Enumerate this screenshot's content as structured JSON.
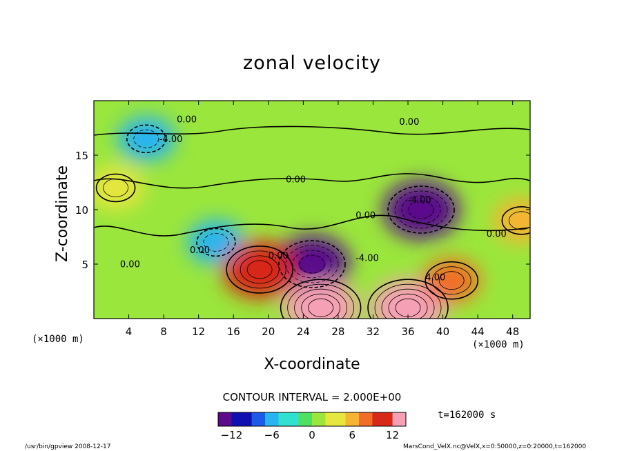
{
  "chart_data": {
    "type": "heatmap",
    "title": "zonal velocity",
    "xlabel": "X-coordinate",
    "ylabel": "Z-coordinate",
    "x_unit": "(×1000 m)",
    "x_unit_right": "(×1000 m)",
    "xlim": [
      0,
      50
    ],
    "ylim": [
      0,
      20
    ],
    "x_ticks": [
      "4",
      "8",
      "12",
      "16",
      "20",
      "24",
      "28",
      "32",
      "36",
      "40",
      "44",
      "48"
    ],
    "y_ticks": [
      "5",
      "10",
      "15"
    ],
    "contour_labels": [
      "0.00",
      "0.00",
      "-4.00",
      "0.00",
      "-4.00",
      "0.00",
      "0.00",
      "0.00",
      "0.00",
      "-4.00",
      "4.00",
      "0.00"
    ],
    "contour_interval_text": "CONTOUR INTERVAL = 2.000E+00",
    "colorbar": {
      "range": [
        -14,
        14
      ],
      "ticks": [
        "−12",
        "−6",
        "0",
        "6",
        "12"
      ],
      "colors": [
        "#5a0a8a",
        "#1010b0",
        "#1e5ae8",
        "#28b4f0",
        "#30e0d0",
        "#50e060",
        "#9ae63c",
        "#e6e63c",
        "#f5b432",
        "#f06e28",
        "#d72818",
        "#f5a0b4"
      ]
    },
    "features": [
      {
        "x": 37.5,
        "z": 10.0,
        "u": -12,
        "name": "negative core upper right"
      },
      {
        "x": 25.0,
        "z": 5.0,
        "u": -12,
        "name": "negative core center"
      },
      {
        "x": 14.0,
        "z": 7.0,
        "u": -6,
        "name": "negative left"
      },
      {
        "x": 19.0,
        "z": 4.5,
        "u": 10,
        "name": "positive core"
      },
      {
        "x": 26.0,
        "z": 1.0,
        "u": 14,
        "name": "positive surface"
      },
      {
        "x": 36.0,
        "z": 1.0,
        "u": 14,
        "name": "positive surface 2"
      },
      {
        "x": 41.0,
        "z": 3.5,
        "u": 8,
        "name": "positive right"
      },
      {
        "x": 49.0,
        "z": 9.0,
        "u": 6,
        "name": "positive edge"
      },
      {
        "x": 2.5,
        "z": 12.0,
        "u": 4,
        "name": "positive left edge"
      },
      {
        "x": 6.0,
        "z": 16.5,
        "u": -6,
        "name": "upper negative"
      }
    ]
  },
  "time_label": "t=162000 s",
  "footer": {
    "left": "/usr/bin/gpview   2008-12-17",
    "right": "MarsCond_VelX.nc@VelX,x=0:50000,z=0:20000,t=162000"
  }
}
